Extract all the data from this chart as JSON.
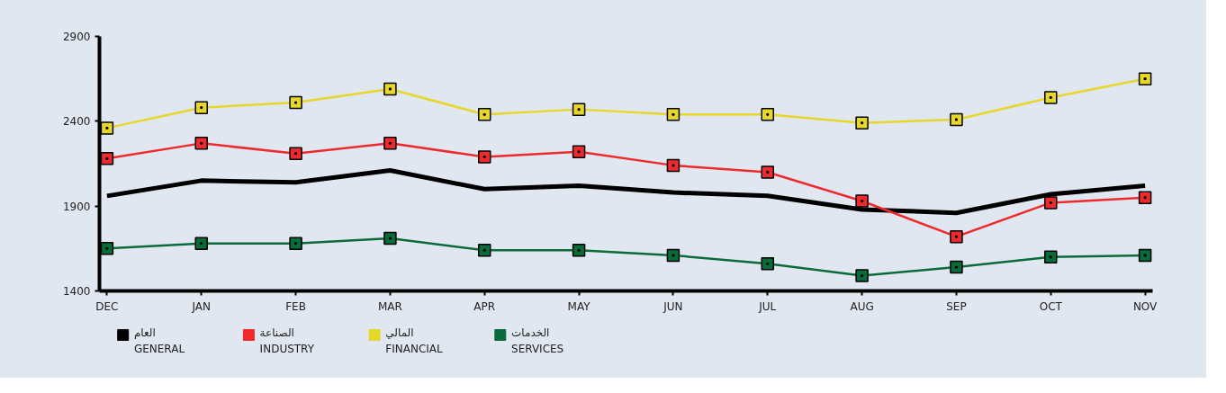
{
  "chart_data": {
    "type": "line",
    "categories": [
      "DEC",
      "JAN",
      "FEB",
      "MAR",
      "APR",
      "MAY",
      "JUN",
      "JUL",
      "AUG",
      "SEP",
      "OCT",
      "NOV"
    ],
    "ylim": [
      1400,
      2900
    ],
    "yticks": [
      1400,
      1900,
      2400,
      2900
    ],
    "grid": false,
    "legend": "bottom",
    "series": [
      {
        "name": "العام\nGENERAL",
        "color": "#000000",
        "marker": "none",
        "values": [
          1960,
          2050,
          2040,
          2110,
          2000,
          2020,
          1980,
          1960,
          1880,
          1860,
          1970,
          2020
        ]
      },
      {
        "name": "الصناعة\nINDUSTRY",
        "color": "#ee2a2e",
        "marker": "square",
        "values": [
          2180,
          2270,
          2210,
          2270,
          2190,
          2220,
          2140,
          2100,
          1930,
          1720,
          1920,
          1950
        ]
      },
      {
        "name": "المالي\nFINANCIAL",
        "color": "#e6d72a",
        "marker": "square",
        "values": [
          2360,
          2480,
          2510,
          2590,
          2440,
          2470,
          2440,
          2440,
          2390,
          2410,
          2540,
          2650
        ]
      },
      {
        "name": "الخدمات\nSERVICES",
        "color": "#0a6b3a",
        "marker": "square",
        "values": [
          1650,
          1680,
          1680,
          1710,
          1640,
          1640,
          1610,
          1560,
          1490,
          1540,
          1600,
          1610
        ]
      }
    ]
  }
}
